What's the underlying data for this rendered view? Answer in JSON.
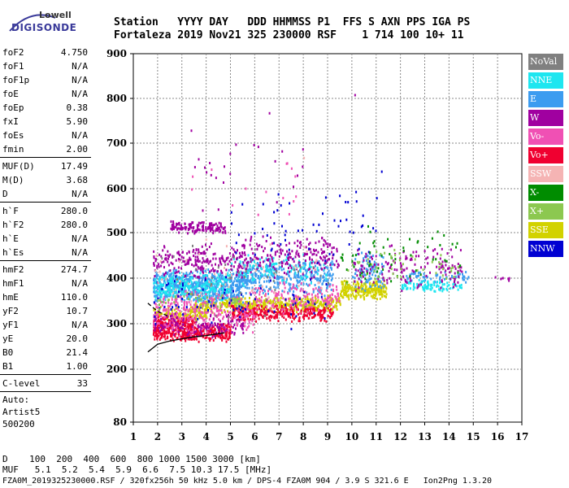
{
  "logo": {
    "line1": "Lowell",
    "line2": "DIGISONDE"
  },
  "header": {
    "line1": "Station   YYYY DAY   DDD HHMMSS P1  FFS S AXN PPS IGA PS",
    "line2": "Fortaleza 2019 Nov21 325 230000 RSF    1 714 100 10+ 11"
  },
  "params": [
    {
      "k": "foF2",
      "v": "4.750"
    },
    {
      "k": "foF1",
      "v": "N/A"
    },
    {
      "k": "foF1p",
      "v": "N/A"
    },
    {
      "k": "foE",
      "v": "N/A"
    },
    {
      "k": "foEp",
      "v": "0.38"
    },
    {
      "k": "fxI",
      "v": "5.90"
    },
    {
      "k": "foEs",
      "v": "N/A"
    },
    {
      "k": "fmin",
      "v": "2.00"
    },
    {
      "sep": true
    },
    {
      "k": "MUF(D)",
      "v": "17.49"
    },
    {
      "k": "M(D)",
      "v": "3.68"
    },
    {
      "k": "D",
      "v": "N/A"
    },
    {
      "sep": true
    },
    {
      "k": "h`F",
      "v": "280.0"
    },
    {
      "k": "h`F2",
      "v": "280.0"
    },
    {
      "k": "h`E",
      "v": "N/A"
    },
    {
      "k": "h`Es",
      "v": "N/A"
    },
    {
      "sep": true
    },
    {
      "k": "hmF2",
      "v": "274.7"
    },
    {
      "k": "hmF1",
      "v": "N/A"
    },
    {
      "k": "hmE",
      "v": "110.0"
    },
    {
      "k": "yF2",
      "v": "10.7"
    },
    {
      "k": "yF1",
      "v": "N/A"
    },
    {
      "k": "yE",
      "v": "20.0"
    },
    {
      "k": "B0",
      "v": "21.4"
    },
    {
      "k": "B1",
      "v": "1.00"
    },
    {
      "sep": true
    },
    {
      "k": "C-level",
      "v": "33"
    },
    {
      "sep": true
    },
    {
      "text": "Auto:"
    },
    {
      "text": "Artist5"
    },
    {
      "text": "500200"
    }
  ],
  "legend": [
    {
      "label": "NoVal",
      "color": "#808080"
    },
    {
      "label": "NNE",
      "color": "#1ee6f0"
    },
    {
      "label": "E",
      "color": "#3c9cf0"
    },
    {
      "label": "W",
      "color": "#a000a0"
    },
    {
      "label": "Vo-",
      "color": "#f050b4"
    },
    {
      "label": "Vo+",
      "color": "#f00030"
    },
    {
      "label": "SSW",
      "color": "#f5b4b4"
    },
    {
      "label": "X-",
      "color": "#008c00"
    },
    {
      "label": "X+",
      "color": "#8cc850"
    },
    {
      "label": "SSE",
      "color": "#d2d200"
    },
    {
      "label": "NNW",
      "color": "#0000d2"
    }
  ],
  "bottom": {
    "line1": "D    100  200  400  600  800 1000 1500 3000 [km]",
    "line2": "MUF   5.1  5.2  5.4  5.9  6.6  7.5 10.3 17.5 [MHz]"
  },
  "footer": "FZA0M_2019325230000.RSF / 320fx256h 50 kHz 5.0 km / DPS-4 FZA0M 904 / 3.9 S 321.6 E   Ion2Png 1.3.20",
  "chart_data": {
    "type": "scatter",
    "title": "",
    "xlabel": "",
    "ylabel": "",
    "xlim": [
      1,
      17
    ],
    "ylim": [
      80,
      900
    ],
    "xticks": [
      1,
      2,
      3,
      4,
      5,
      6,
      7,
      8,
      9,
      10,
      11,
      12,
      13,
      14,
      15,
      16,
      17
    ],
    "yticks": [
      80,
      200,
      300,
      400,
      500,
      600,
      700,
      800,
      900
    ],
    "grid": true,
    "legend_placement": "right",
    "clusters": [
      {
        "name": "SSE",
        "f": [
          3.5,
          9.5
        ],
        "h": [
          325,
          365
        ],
        "n": 500
      },
      {
        "name": "SSE",
        "f": [
          9.5,
          11.4
        ],
        "h": [
          355,
          400
        ],
        "n": 260
      },
      {
        "name": "SSE",
        "f": [
          1.8,
          4.0
        ],
        "h": [
          305,
          340
        ],
        "n": 130
      },
      {
        "name": "E",
        "f": [
          1.8,
          5.5
        ],
        "h": [
          345,
          425
        ],
        "n": 650
      },
      {
        "name": "E",
        "f": [
          5.5,
          9.2
        ],
        "h": [
          360,
          450
        ],
        "n": 320
      },
      {
        "name": "E",
        "f": [
          10.0,
          11.3
        ],
        "h": [
          370,
          460
        ],
        "n": 90
      },
      {
        "name": "E",
        "f": [
          12.2,
          14.8
        ],
        "h": [
          390,
          420
        ],
        "n": 60
      },
      {
        "name": "NNE",
        "f": [
          1.8,
          5.0
        ],
        "h": [
          350,
          420
        ],
        "n": 260
      },
      {
        "name": "NNE",
        "f": [
          12.0,
          14.5
        ],
        "h": [
          370,
          400
        ],
        "n": 100
      },
      {
        "name": "NNE",
        "f": [
          5.0,
          9.0
        ],
        "h": [
          380,
          460
        ],
        "n": 120
      },
      {
        "name": "Vo+",
        "f": [
          1.8,
          5.0
        ],
        "h": [
          262,
          305
        ],
        "n": 380
      },
      {
        "name": "Vo+",
        "f": [
          5.0,
          9.2
        ],
        "h": [
          305,
          345
        ],
        "n": 300
      },
      {
        "name": "Vo+",
        "f": [
          1.8,
          3.5
        ],
        "h": [
          290,
          320
        ],
        "n": 120
      },
      {
        "name": "Vo-",
        "f": [
          1.8,
          6.0
        ],
        "h": [
          270,
          380
        ],
        "n": 320
      },
      {
        "name": "Vo-",
        "f": [
          6.0,
          9.5
        ],
        "h": [
          320,
          400
        ],
        "n": 160
      },
      {
        "name": "W",
        "f": [
          2.5,
          4.8
        ],
        "h": [
          500,
          530
        ],
        "n": 140
      },
      {
        "name": "W",
        "f": [
          1.8,
          5.5
        ],
        "h": [
          400,
          480
        ],
        "n": 220
      },
      {
        "name": "W",
        "f": [
          5.5,
          9.5
        ],
        "h": [
          400,
          500
        ],
        "n": 200
      },
      {
        "name": "W",
        "f": [
          10.0,
          14.5
        ],
        "h": [
          370,
          480
        ],
        "n": 150
      },
      {
        "name": "W",
        "f": [
          1.8,
          5.5
        ],
        "h": [
          270,
          330
        ],
        "n": 120
      },
      {
        "name": "NNW",
        "f": [
          5.0,
          11.0
        ],
        "h": [
          420,
          600
        ],
        "n": 60
      },
      {
        "name": "NNW",
        "f": [
          1.8,
          9.0
        ],
        "h": [
          280,
          420
        ],
        "n": 80
      },
      {
        "name": "X-",
        "f": [
          9.5,
          14.5
        ],
        "h": [
          380,
          520
        ],
        "n": 60
      },
      {
        "name": "X+",
        "f": [
          9.5,
          14.5
        ],
        "h": [
          380,
          480
        ],
        "n": 50
      },
      {
        "name": "X+",
        "f": [
          1.8,
          6.0
        ],
        "h": [
          330,
          380
        ],
        "n": 40
      },
      {
        "name": "SSW",
        "f": [
          1.8,
          9.0
        ],
        "h": [
          300,
          500
        ],
        "n": 60
      },
      {
        "name": "NoVal",
        "f": [
          1.8,
          9.0
        ],
        "h": [
          300,
          500
        ],
        "n": 40
      },
      {
        "name": "W",
        "f": [
          3.0,
          8.0
        ],
        "h": [
          520,
          800
        ],
        "n": 25
      },
      {
        "name": "Vo-",
        "f": [
          3.0,
          8.0
        ],
        "h": [
          520,
          700
        ],
        "n": 15
      },
      {
        "name": "W",
        "f": [
          15.5,
          16.8
        ],
        "h": [
          395,
          410
        ],
        "n": 8
      }
    ],
    "points": [
      {
        "f": 10.1,
        "h": 810,
        "name": "W"
      },
      {
        "f": 8.0,
        "h": 670,
        "name": "SSW"
      },
      {
        "f": 11.2,
        "h": 640,
        "name": "NNW"
      }
    ],
    "trace_o": [
      [
        1.6,
        238
      ],
      [
        2.0,
        255
      ],
      [
        2.5,
        262
      ],
      [
        3.0,
        267
      ],
      [
        3.5,
        271
      ],
      [
        4.0,
        274
      ],
      [
        4.5,
        278
      ],
      [
        4.75,
        280
      ]
    ],
    "trace_x": [
      [
        1.6,
        345
      ],
      [
        2.0,
        327
      ],
      [
        2.5,
        315
      ]
    ]
  }
}
